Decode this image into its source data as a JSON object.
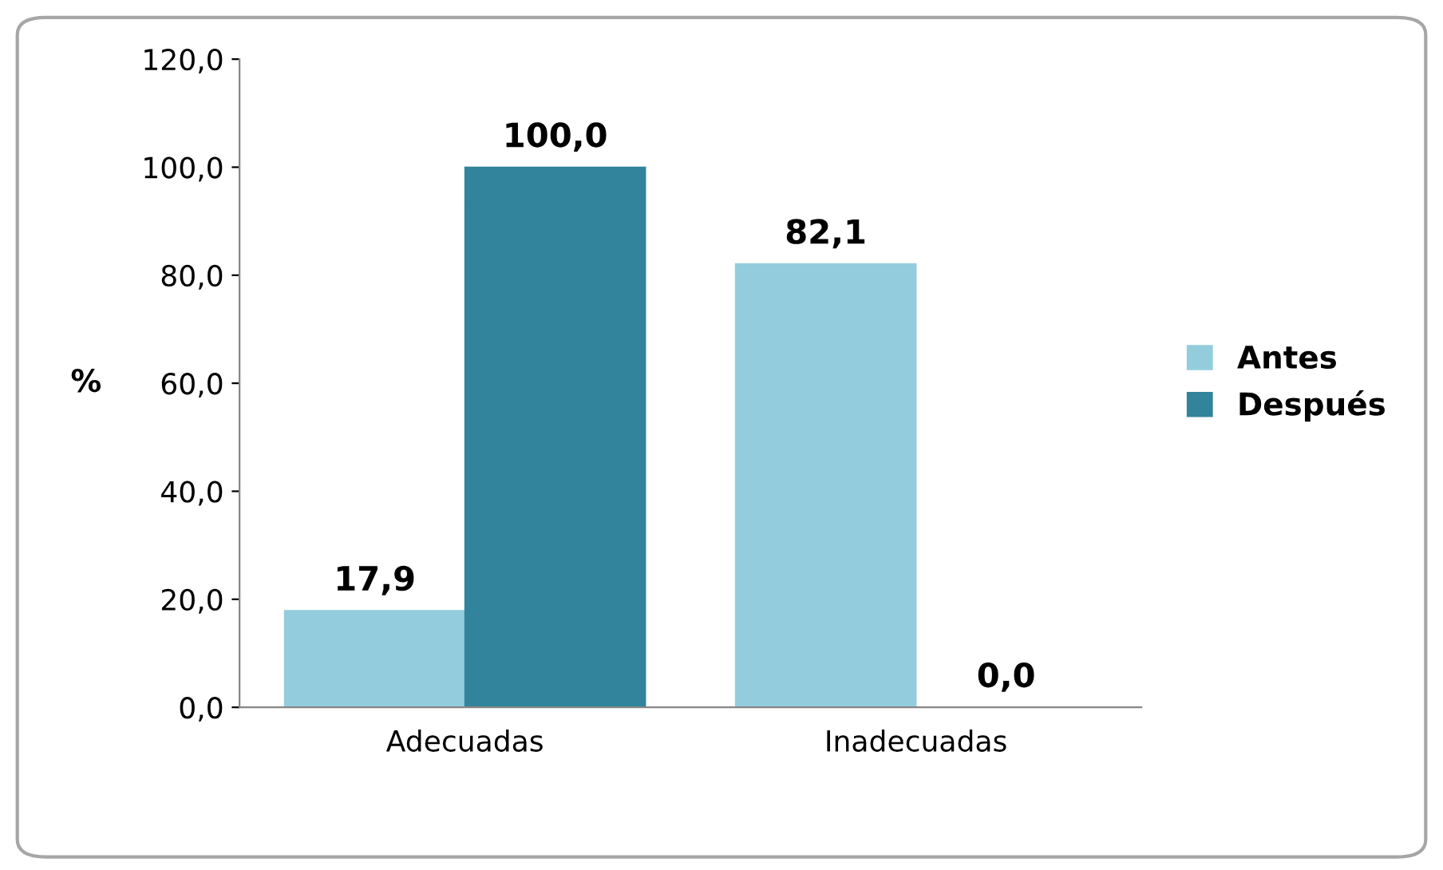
{
  "chart_data": {
    "type": "bar",
    "ylabel": "%",
    "categories": [
      "Adecuadas",
      "Inadecuadas"
    ],
    "series": [
      {
        "name": "Antes",
        "color": "#93cddd",
        "values": [
          17.9,
          82.1
        ],
        "value_labels": [
          "17,9",
          "82,1"
        ]
      },
      {
        "name": "Después",
        "color": "#31849b",
        "values": [
          100.0,
          0.0
        ],
        "value_labels": [
          "100,0",
          "0,0"
        ]
      }
    ],
    "ylim": [
      0,
      120
    ],
    "yticks": [
      {
        "value": 0,
        "label": "0,0"
      },
      {
        "value": 20,
        "label": "20,0"
      },
      {
        "value": 40,
        "label": "40,0"
      },
      {
        "value": 60,
        "label": "60,0"
      },
      {
        "value": 80,
        "label": "80,0"
      },
      {
        "value": 100,
        "label": "100,0"
      },
      {
        "value": 120,
        "label": "120,0"
      }
    ],
    "grid": false,
    "legend": "right"
  }
}
